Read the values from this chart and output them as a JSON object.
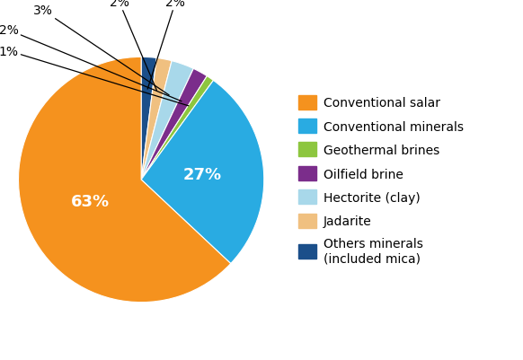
{
  "labels": [
    "Conventional salar",
    "Conventional minerals",
    "Geothermal brines",
    "Oilfield brine",
    "Hectorite (clay)",
    "Jadarite",
    "Others minerals\n(included mica)"
  ],
  "values": [
    63,
    27,
    1,
    2,
    3,
    2,
    2
  ],
  "colors": [
    "#F5921E",
    "#29ABE2",
    "#8DC63F",
    "#7B2D8B",
    "#A8D8EA",
    "#F0C080",
    "#1B4F8A"
  ],
  "bg_color": "#FFFFFF",
  "pct_fontsize": 13,
  "annotation_fontsize": 10,
  "legend_fontsize": 10
}
